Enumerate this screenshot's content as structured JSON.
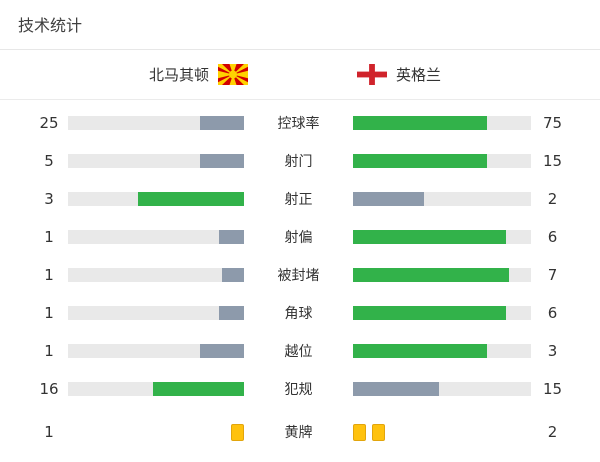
{
  "title": "技术统计",
  "teams": {
    "home": {
      "name": "北马其顿",
      "flag": "north-macedonia-flag"
    },
    "away": {
      "name": "英格兰",
      "flag": "england-flag"
    }
  },
  "colors": {
    "winner_green": "#32b24a",
    "loser_gray": "#8d9aab",
    "track_gray": "#e9e9e9",
    "yellow_card_fill": "#ffc20e",
    "yellow_card_border": "#e2a50c",
    "text": "#333333",
    "divider": "#e7e7e7",
    "mk_flag_red": "#d20000",
    "mk_flag_yellow": "#ffd200",
    "en_flag_red": "#d0232b"
  },
  "chart_data": {
    "type": "bar",
    "variant": "mirrored-paired-horizontal",
    "title": "技术统计",
    "categories": [
      "控球率",
      "射门",
      "射正",
      "射偏",
      "被封堵",
      "角球",
      "越位",
      "犯规",
      "黄牌"
    ],
    "series": [
      {
        "name": "北马其顿",
        "values": [
          25,
          5,
          3,
          1,
          1,
          1,
          1,
          16,
          1
        ]
      },
      {
        "name": "英格兰",
        "values": [
          75,
          15,
          2,
          6,
          7,
          6,
          3,
          15,
          2
        ]
      }
    ],
    "row_types": [
      "bar",
      "bar",
      "bar",
      "bar",
      "bar",
      "bar",
      "bar",
      "bar",
      "cards"
    ],
    "notes": "bar length = value/(home+away); higher value drawn green, lower gray; home bars grow right-to-left toward center; 黄牌 row shown as yellow card icons",
    "legend_position": "top",
    "grid": false
  }
}
